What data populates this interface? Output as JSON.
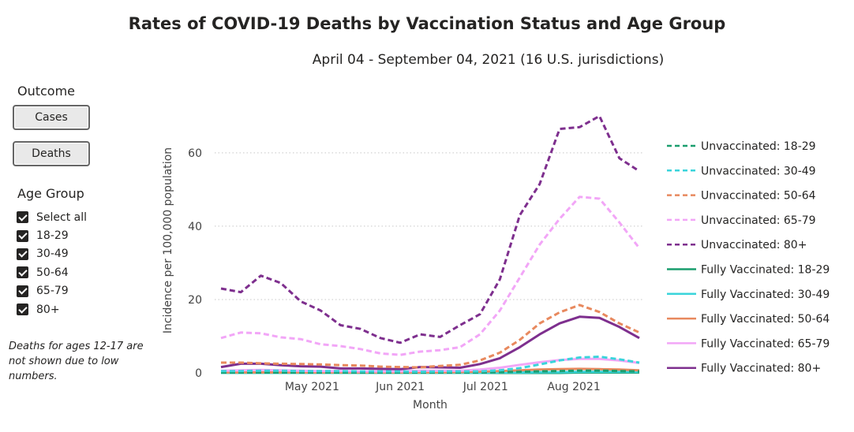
{
  "title": "Rates of COVID-19 Deaths by Vaccination Status and Age Group",
  "subtitle": "April 04 - September 04, 2021 (16 U.S. jurisdictions)",
  "outcome": {
    "label": "Outcome",
    "buttons": [
      "Cases",
      "Deaths"
    ]
  },
  "age_group": {
    "label": "Age Group",
    "options": [
      "Select all",
      "18-29",
      "30-49",
      "50-64",
      "65-79",
      "80+"
    ]
  },
  "note": "Deaths for ages 12-17 are not shown due to low numbers.",
  "chart_data": {
    "type": "line",
    "x": [
      "2021-04-04",
      "2021-04-11",
      "2021-04-18",
      "2021-04-25",
      "2021-05-02",
      "2021-05-09",
      "2021-05-16",
      "2021-05-23",
      "2021-05-30",
      "2021-06-06",
      "2021-06-13",
      "2021-06-20",
      "2021-06-27",
      "2021-07-04",
      "2021-07-11",
      "2021-07-18",
      "2021-07-25",
      "2021-08-01",
      "2021-08-08",
      "2021-08-15",
      "2021-08-22",
      "2021-08-29"
    ],
    "x_ticks": [
      "May 2021",
      "Jun 2021",
      "Jul 2021",
      "Aug 2021"
    ],
    "xlabel": "Month",
    "ylabel": "Incidence per 100,000 population",
    "y_ticks": [
      0,
      20,
      40,
      60
    ],
    "ylim": [
      0,
      72
    ],
    "grid": "horizontal dotted",
    "legend_position": "right",
    "series": [
      {
        "name": "Unvaccinated: 18-29",
        "color": "#1a9e6e",
        "dash": true,
        "values": [
          0.1,
          0.1,
          0.1,
          0.1,
          0.1,
          0.1,
          0.1,
          0.1,
          0.1,
          0.1,
          0.1,
          0.1,
          0.1,
          0.1,
          0.2,
          0.3,
          0.4,
          0.5,
          0.6,
          0.6,
          0.5,
          0.4
        ]
      },
      {
        "name": "Unvaccinated: 30-49",
        "color": "#3ad4db",
        "dash": true,
        "values": [
          0.5,
          0.5,
          0.6,
          0.6,
          0.5,
          0.5,
          0.5,
          0.4,
          0.4,
          0.4,
          0.3,
          0.4,
          0.4,
          0.4,
          0.7,
          1.3,
          2.3,
          3.4,
          4.2,
          4.4,
          3.7,
          2.8
        ]
      },
      {
        "name": "Unvaccinated: 50-64",
        "color": "#e8895e",
        "dash": true,
        "values": [
          2.8,
          2.8,
          2.6,
          2.5,
          2.4,
          2.3,
          2.1,
          2.0,
          1.7,
          1.6,
          1.5,
          1.9,
          2.2,
          3.4,
          5.5,
          9.0,
          13.5,
          16.5,
          18.5,
          16.6,
          13.5,
          11.0
        ]
      },
      {
        "name": "Unvaccinated: 65-79",
        "color": "#f2a6f7",
        "dash": true,
        "values": [
          9.5,
          11.0,
          10.8,
          9.7,
          9.2,
          7.8,
          7.3,
          6.5,
          5.3,
          4.9,
          5.8,
          6.2,
          7.0,
          10.5,
          17.0,
          26.0,
          35.0,
          42.0,
          48.0,
          47.5,
          41.0,
          34.0
        ]
      },
      {
        "name": "Unvaccinated: 80+",
        "color": "#7e2f8e",
        "dash": true,
        "values": [
          23.0,
          22.0,
          26.5,
          24.5,
          19.5,
          17.0,
          13.0,
          12.0,
          9.5,
          8.2,
          10.5,
          9.8,
          13.0,
          16.0,
          25.5,
          43.0,
          51.5,
          66.5,
          67.0,
          70.0,
          58.5,
          55.0
        ]
      },
      {
        "name": "Fully Vaccinated: 18-29",
        "color": "#1a9e6e",
        "dash": false,
        "values": [
          0,
          0,
          0,
          0,
          0,
          0,
          0,
          0,
          0,
          0,
          0,
          0,
          0,
          0,
          0,
          0,
          0,
          0,
          0.1,
          0.1,
          0.1,
          0.1
        ]
      },
      {
        "name": "Fully Vaccinated: 30-49",
        "color": "#3ad4db",
        "dash": false,
        "values": [
          0,
          0,
          0,
          0,
          0,
          0,
          0,
          0,
          0,
          0,
          0,
          0,
          0,
          0,
          0.1,
          0.1,
          0.2,
          0.2,
          0.3,
          0.3,
          0.3,
          0.3
        ]
      },
      {
        "name": "Fully Vaccinated: 50-64",
        "color": "#e8895e",
        "dash": false,
        "values": [
          0.1,
          0.1,
          0.1,
          0.1,
          0.1,
          0.1,
          0.1,
          0.1,
          0.1,
          0.1,
          0.1,
          0.1,
          0.2,
          0.3,
          0.5,
          0.7,
          0.9,
          1.0,
          1.1,
          1.0,
          0.9,
          0.7
        ]
      },
      {
        "name": "Fully Vaccinated: 65-79",
        "color": "#f2a6f7",
        "dash": false,
        "values": [
          0.6,
          0.7,
          0.8,
          0.7,
          0.6,
          0.5,
          0.5,
          0.4,
          0.4,
          0.4,
          0.6,
          0.6,
          0.6,
          0.9,
          1.4,
          2.2,
          2.9,
          3.5,
          3.8,
          3.8,
          3.4,
          2.7
        ]
      },
      {
        "name": "Fully Vaccinated: 80+",
        "color": "#7e2f8e",
        "dash": false,
        "values": [
          1.6,
          2.5,
          2.5,
          2.1,
          1.8,
          1.7,
          1.2,
          1.2,
          1.1,
          1.0,
          1.6,
          1.5,
          1.4,
          2.4,
          4.0,
          7.0,
          10.5,
          13.5,
          15.3,
          15.0,
          12.5,
          9.5
        ]
      }
    ]
  }
}
